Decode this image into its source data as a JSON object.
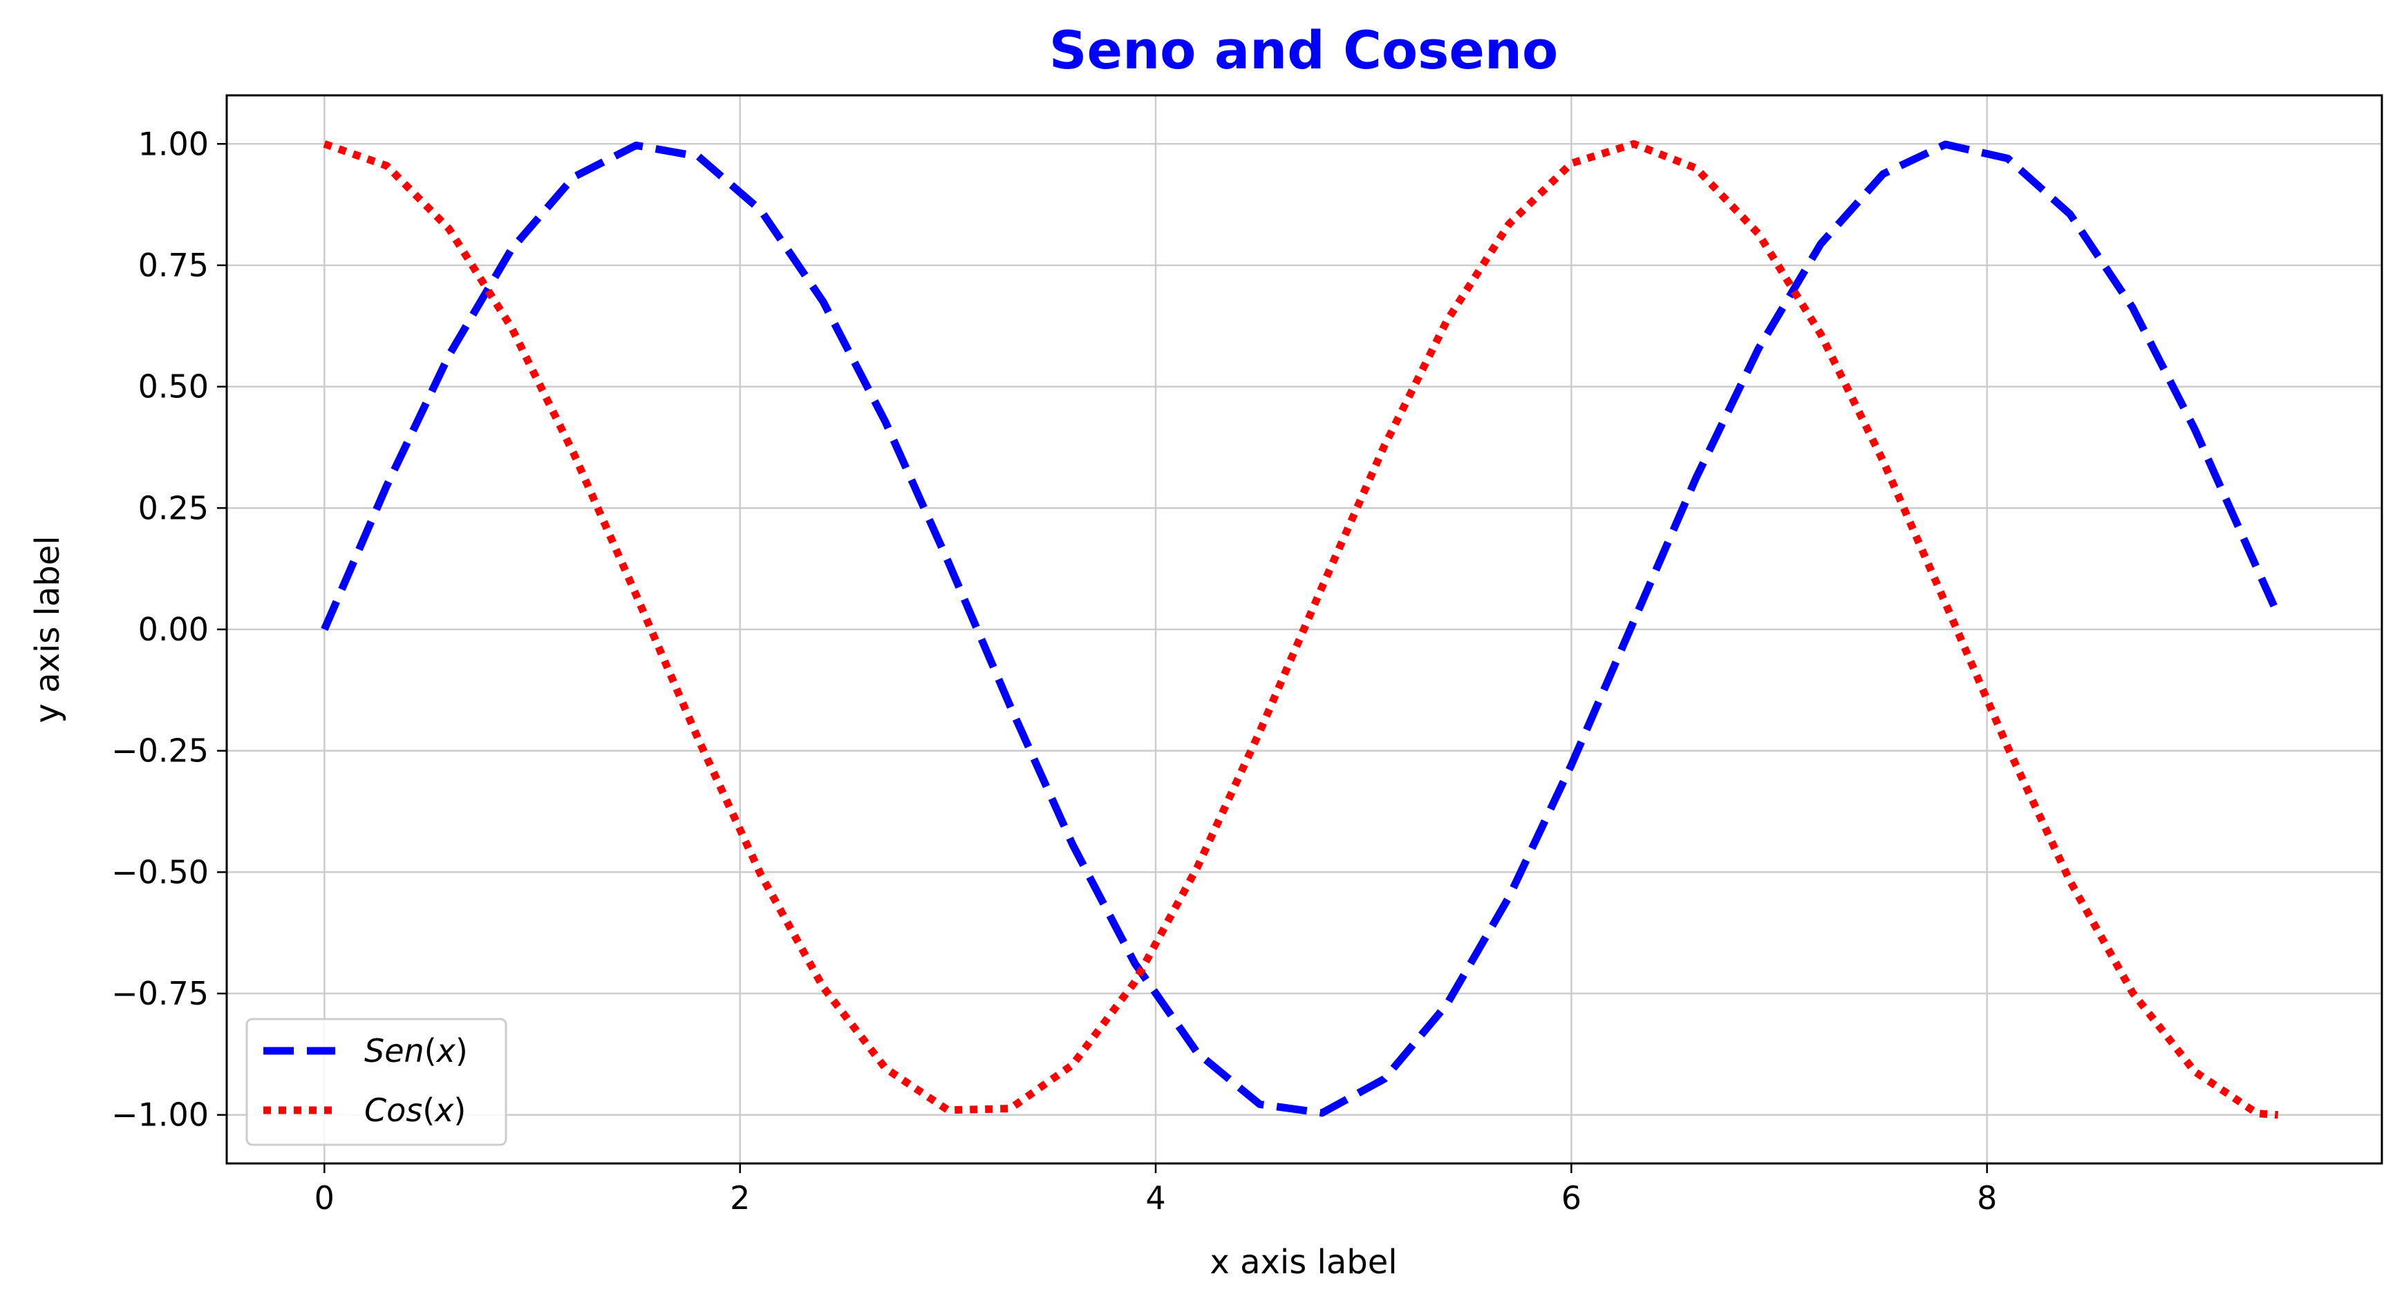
{
  "chart_data": {
    "type": "line",
    "title": "Seno and Coseno",
    "title_color": "#0000ff",
    "xlabel": "x axis label",
    "ylabel": "y axis label",
    "xlim": [
      -0.47,
      9.9
    ],
    "ylim": [
      -1.1,
      1.1
    ],
    "x_ticks": [
      0,
      2,
      4,
      6,
      8
    ],
    "x_tick_labels": [
      "0",
      "2",
      "4",
      "6",
      "8"
    ],
    "y_ticks": [
      1.0,
      0.75,
      0.5,
      0.25,
      0.0,
      -0.25,
      -0.5,
      -0.75,
      -1.0
    ],
    "y_tick_labels": [
      "1.00",
      "0.75",
      "0.50",
      "0.25",
      "0.00",
      "−0.25",
      "−0.50",
      "−0.75",
      "−1.00"
    ],
    "grid": true,
    "legend_position": "lower-left",
    "x": [
      0,
      0.3,
      0.6,
      0.9,
      1.2,
      1.5,
      1.8,
      2.1,
      2.4,
      2.7,
      3.0,
      3.3,
      3.6,
      3.9,
      4.2,
      4.5,
      4.8,
      5.1,
      5.4,
      5.7,
      6.0,
      6.3,
      6.6,
      6.9,
      7.2,
      7.5,
      7.8,
      8.1,
      8.4,
      8.7,
      9.0,
      9.3,
      9.4
    ],
    "series": [
      {
        "name_italic": "Sen",
        "name_arg": "(x)",
        "color": "#0000ff",
        "style": "dashed",
        "values": [
          0.0,
          0.296,
          0.565,
          0.783,
          0.932,
          0.997,
          0.974,
          0.863,
          0.675,
          0.427,
          0.141,
          -0.158,
          -0.443,
          -0.688,
          -0.872,
          -0.978,
          -0.996,
          -0.926,
          -0.773,
          -0.551,
          -0.279,
          0.017,
          0.312,
          0.578,
          0.794,
          0.938,
          0.999,
          0.97,
          0.855,
          0.663,
          0.412,
          0.125,
          0.03
        ]
      },
      {
        "name_italic": "Cos",
        "name_arg": "(x)",
        "color": "#ff0000",
        "style": "dotted",
        "values": [
          1.0,
          0.955,
          0.825,
          0.622,
          0.362,
          0.071,
          -0.227,
          -0.505,
          -0.737,
          -0.904,
          -0.99,
          -0.987,
          -0.897,
          -0.726,
          -0.49,
          -0.211,
          0.087,
          0.378,
          0.635,
          0.835,
          0.96,
          1.0,
          0.95,
          0.815,
          0.608,
          0.347,
          0.054,
          -0.243,
          -0.519,
          -0.748,
          -0.911,
          -0.997,
          -1.0
        ]
      }
    ]
  }
}
